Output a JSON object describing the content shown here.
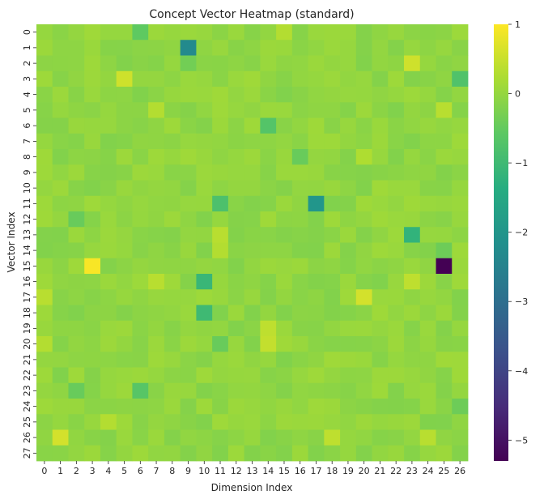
{
  "chart_data": {
    "type": "heatmap",
    "title": "Concept Vector Heatmap (standard)",
    "xlabel": "Dimension Index",
    "ylabel": "Vector Index",
    "x_ticks": [
      "0",
      "1",
      "2",
      "3",
      "4",
      "5",
      "6",
      "7",
      "8",
      "9",
      "10",
      "11",
      "12",
      "13",
      "14",
      "15",
      "16",
      "17",
      "18",
      "19",
      "20",
      "21",
      "22",
      "23",
      "24",
      "25",
      "26"
    ],
    "y_ticks": [
      "0",
      "1",
      "2",
      "3",
      "4",
      "5",
      "6",
      "7",
      "8",
      "9",
      "10",
      "11",
      "12",
      "13",
      "14",
      "15",
      "16",
      "17",
      "18",
      "19",
      "20",
      "21",
      "22",
      "23",
      "24",
      "25",
      "26",
      "27"
    ],
    "colormap": "viridis",
    "vmin": -5.3,
    "vmax": 1.0,
    "colorbar_ticks": [
      "1",
      "0",
      "−1",
      "−2",
      "−3",
      "−4",
      "−5"
    ],
    "colorbar_tick_values": [
      1,
      0,
      -1,
      -2,
      -3,
      -4,
      -5
    ],
    "grid": false,
    "legend": "colorbar-right",
    "baseline_value": -0.05,
    "highlighted_cells": [
      {
        "row": 0,
        "col": 6,
        "value": -0.55
      },
      {
        "row": 0,
        "col": 15,
        "value": 0.3
      },
      {
        "row": 1,
        "col": 9,
        "value": -2.3
      },
      {
        "row": 2,
        "col": 9,
        "value": -0.35
      },
      {
        "row": 2,
        "col": 23,
        "value": 0.55
      },
      {
        "row": 3,
        "col": 5,
        "value": 0.55
      },
      {
        "row": 3,
        "col": 26,
        "value": -0.75
      },
      {
        "row": 5,
        "col": 7,
        "value": 0.3
      },
      {
        "row": 5,
        "col": 25,
        "value": 0.35
      },
      {
        "row": 6,
        "col": 14,
        "value": -0.7
      },
      {
        "row": 8,
        "col": 16,
        "value": -0.45
      },
      {
        "row": 8,
        "col": 20,
        "value": 0.25
      },
      {
        "row": 11,
        "col": 11,
        "value": -0.8
      },
      {
        "row": 11,
        "col": 17,
        "value": -2.0
      },
      {
        "row": 12,
        "col": 2,
        "value": -0.45
      },
      {
        "row": 13,
        "col": 11,
        "value": 0.35
      },
      {
        "row": 13,
        "col": 23,
        "value": -1.2
      },
      {
        "row": 14,
        "col": 11,
        "value": 0.3
      },
      {
        "row": 14,
        "col": 25,
        "value": -0.4
      },
      {
        "row": 15,
        "col": 3,
        "value": 0.95
      },
      {
        "row": 15,
        "col": 25,
        "value": -5.3
      },
      {
        "row": 16,
        "col": 7,
        "value": 0.35
      },
      {
        "row": 16,
        "col": 10,
        "value": -1.1
      },
      {
        "row": 16,
        "col": 23,
        "value": 0.4
      },
      {
        "row": 17,
        "col": 0,
        "value": 0.35
      },
      {
        "row": 17,
        "col": 20,
        "value": 0.6
      },
      {
        "row": 18,
        "col": 10,
        "value": -1.0
      },
      {
        "row": 19,
        "col": 14,
        "value": 0.4
      },
      {
        "row": 20,
        "col": 0,
        "value": 0.3
      },
      {
        "row": 20,
        "col": 11,
        "value": -0.45
      },
      {
        "row": 20,
        "col": 14,
        "value": 0.45
      },
      {
        "row": 23,
        "col": 2,
        "value": -0.45
      },
      {
        "row": 23,
        "col": 6,
        "value": -0.65
      },
      {
        "row": 24,
        "col": 26,
        "value": -0.4
      },
      {
        "row": 25,
        "col": 4,
        "value": 0.3
      },
      {
        "row": 26,
        "col": 1,
        "value": 0.6
      },
      {
        "row": 26,
        "col": 18,
        "value": 0.4
      },
      {
        "row": 26,
        "col": 24,
        "value": 0.35
      }
    ]
  }
}
